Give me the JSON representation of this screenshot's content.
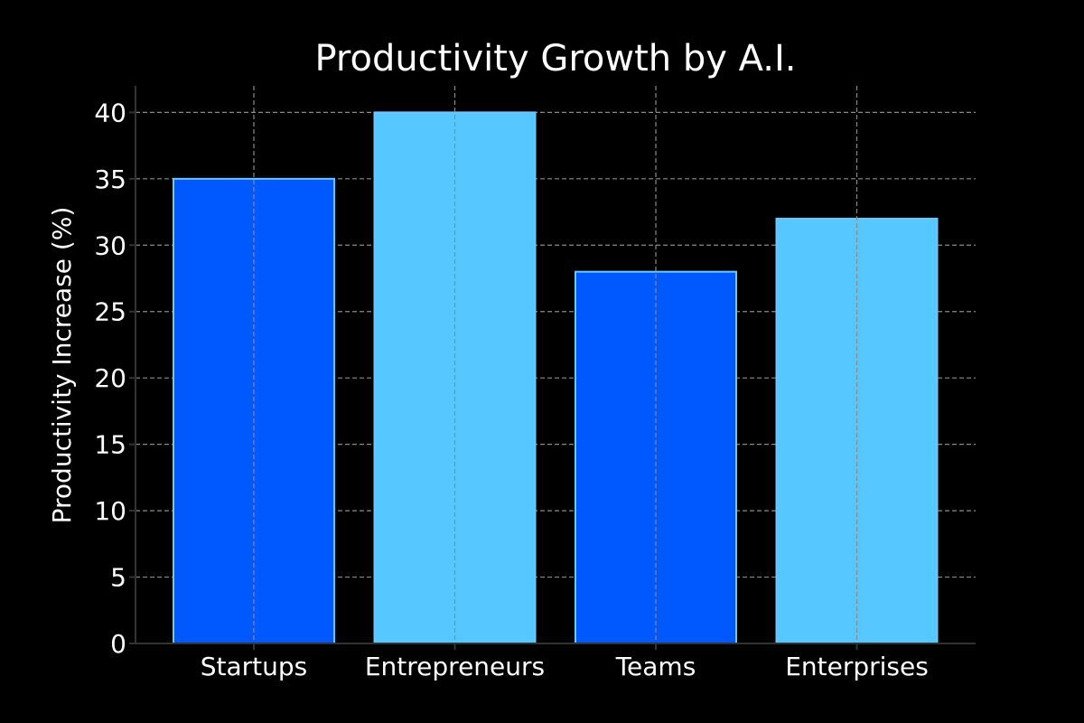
{
  "chart_data": {
    "type": "bar",
    "title": "Productivity Growth by A.I.",
    "xlabel": "",
    "ylabel": "Productivity Increase (%)",
    "categories": [
      "Startups",
      "Entrepreneurs",
      "Teams",
      "Enterprises"
    ],
    "values": [
      35,
      40,
      28,
      32
    ],
    "bar_colors": [
      "#0059ff",
      "#57c7ff",
      "#0059ff",
      "#57c7ff"
    ],
    "bar_edge_color": "#6ec6ff",
    "ylim": [
      0,
      42
    ],
    "yticks": [
      0,
      5,
      10,
      15,
      20,
      25,
      30,
      35,
      40
    ],
    "grid": true,
    "grid_style": "dashed",
    "background": "#000000",
    "text_color": "#ffffff"
  }
}
